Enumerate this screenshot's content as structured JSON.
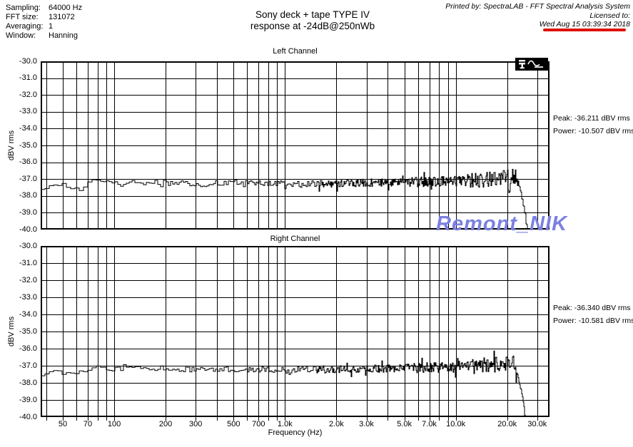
{
  "header": {
    "info": [
      {
        "label": "Sampling:",
        "value": "64000 Hz"
      },
      {
        "label": "FFT size:",
        "value": "131072"
      },
      {
        "label": "Averaging:",
        "value": "1"
      },
      {
        "label": "Window:",
        "value": "Hanning"
      }
    ],
    "title_line1": "Sony deck + tape TYPE IV",
    "title_line2": "response at -24dB@250nWb",
    "printed_by": "Printed by: SpectraLAB - FFT Spectral Analysis System",
    "licensed_to": "Licensed to:",
    "datetime": "Wed Aug 15 03:39:34 2018",
    "underline_color": "#dd1100"
  },
  "watermark": {
    "text": "Remont_NIK",
    "color": "#7b80e2"
  },
  "icons": {
    "cursor_waveform": "black inset box with white marker glyph and sine-wave glyph (top-right of Left Channel plot)"
  },
  "chart_data": [
    {
      "type": "line",
      "title": "Left Channel",
      "ylabel": "dBV rms",
      "xlabel": "Frequency (Hz)",
      "xscale": "log",
      "xlim": [
        37.1,
        35400
      ],
      "ylim": [
        -40.0,
        -30.0
      ],
      "ytick_step": 1.0,
      "xtick_values": [
        50,
        70,
        100,
        200,
        300,
        500,
        700,
        1000,
        2000,
        3000,
        5000,
        7000,
        10000,
        20000,
        30000
      ],
      "xtick_labels": [
        "50",
        "70",
        "100",
        "200",
        "300",
        "500",
        "700",
        "1.0k",
        "2.0k",
        "3.0k",
        "5.0k",
        "7.0k",
        "10.0k",
        "20.0k",
        "30.0k"
      ],
      "grid": "full log minor grid (every 1..9 multiple per decade) and 1 dB horizontal lines",
      "peak_label": "Peak: -36.211 dBV rms",
      "power_label": "Power: -10.507 dBV rms",
      "peak_dbv_rms": -36.211,
      "power_dbv_rms": -10.507,
      "series": [
        {
          "name": "left-spectrum",
          "description": "noisy FFT magnitude trace, ~-37.2 dBV flat response 40 Hz - 20 kHz, peaks near -36.2 dBV at 21-22 kHz, steep roll-off below -40 dBV past 24 kHz",
          "envelope_db_points": [
            [
              37,
              -37.55
            ],
            [
              42,
              -37.35
            ],
            [
              48,
              -37.3
            ],
            [
              55,
              -37.5
            ],
            [
              62,
              -37.6
            ],
            [
              70,
              -37.2
            ],
            [
              78,
              -37.05
            ],
            [
              90,
              -37.15
            ],
            [
              110,
              -37.25
            ],
            [
              150,
              -37.15
            ],
            [
              220,
              -37.25
            ],
            [
              320,
              -37.3
            ],
            [
              500,
              -37.2
            ],
            [
              800,
              -37.25
            ],
            [
              1300,
              -37.3
            ],
            [
              2200,
              -37.25
            ],
            [
              4000,
              -37.2
            ],
            [
              7000,
              -37.15
            ],
            [
              11000,
              -37.1
            ],
            [
              15000,
              -37.05
            ],
            [
              18500,
              -36.95
            ],
            [
              21000,
              -36.85
            ],
            [
              22400,
              -36.8
            ],
            [
              23200,
              -37.15
            ],
            [
              24000,
              -37.8
            ],
            [
              24800,
              -38.5
            ],
            [
              25600,
              -39.3
            ],
            [
              26400,
              -40.4
            ],
            [
              27200,
              -41.6
            ]
          ],
          "noise_bands": [
            [
              150,
              0.12
            ],
            [
              1000,
              0.16
            ],
            [
              5000,
              0.22
            ],
            [
              12000,
              0.3
            ],
            [
              23000,
              0.45
            ],
            [
              100000,
              0.15
            ]
          ],
          "seed": 20180815
        }
      ]
    },
    {
      "type": "line",
      "title": "Right Channel",
      "ylabel": "dBV rms",
      "xlabel": "Frequency (Hz)",
      "xscale": "log",
      "xlim": [
        37.1,
        35400
      ],
      "ylim": [
        -40.0,
        -30.0
      ],
      "ytick_step": 1.0,
      "xtick_values": [
        50,
        70,
        100,
        200,
        300,
        500,
        700,
        1000,
        2000,
        3000,
        5000,
        7000,
        10000,
        20000,
        30000
      ],
      "xtick_labels": [
        "50",
        "70",
        "100",
        "200",
        "300",
        "500",
        "700",
        "1.0k",
        "2.0k",
        "3.0k",
        "5.0k",
        "7.0k",
        "10.0k",
        "20.0k",
        "30.0k"
      ],
      "grid": "full log minor grid (every 1..9 multiple per decade) and 1 dB horizontal lines",
      "peak_label": "Peak: -36.340 dBV rms",
      "power_label": "Power: -10.581 dBV rms",
      "peak_dbv_rms": -36.34,
      "power_dbv_rms": -10.581,
      "series": [
        {
          "name": "right-spectrum",
          "description": "noisy FFT magnitude trace, ~-37.2 dBV flat response 40 Hz - 20 kHz, peaks near -36.3 dBV at 21-22 kHz, steep roll-off below -40 dBV past 24 kHz",
          "envelope_db_points": [
            [
              37,
              -37.5
            ],
            [
              45,
              -37.35
            ],
            [
              55,
              -37.5
            ],
            [
              65,
              -37.3
            ],
            [
              80,
              -37.1
            ],
            [
              100,
              -37.2
            ],
            [
              140,
              -37.1
            ],
            [
              220,
              -37.2
            ],
            [
              350,
              -37.25
            ],
            [
              600,
              -37.2
            ],
            [
              1100,
              -37.25
            ],
            [
              2400,
              -37.2
            ],
            [
              4800,
              -37.15
            ],
            [
              9000,
              -37.1
            ],
            [
              13500,
              -37.05
            ],
            [
              17000,
              -36.95
            ],
            [
              19800,
              -36.85
            ],
            [
              21600,
              -36.8
            ],
            [
              22800,
              -37.25
            ],
            [
              23600,
              -38.0
            ],
            [
              24400,
              -38.7
            ],
            [
              25200,
              -39.7
            ],
            [
              26000,
              -40.9
            ]
          ],
          "noise_bands": [
            [
              150,
              0.12
            ],
            [
              1000,
              0.16
            ],
            [
              5000,
              0.22
            ],
            [
              12000,
              0.3
            ],
            [
              23000,
              0.45
            ],
            [
              100000,
              0.15
            ]
          ],
          "seed": 314159
        }
      ]
    }
  ]
}
